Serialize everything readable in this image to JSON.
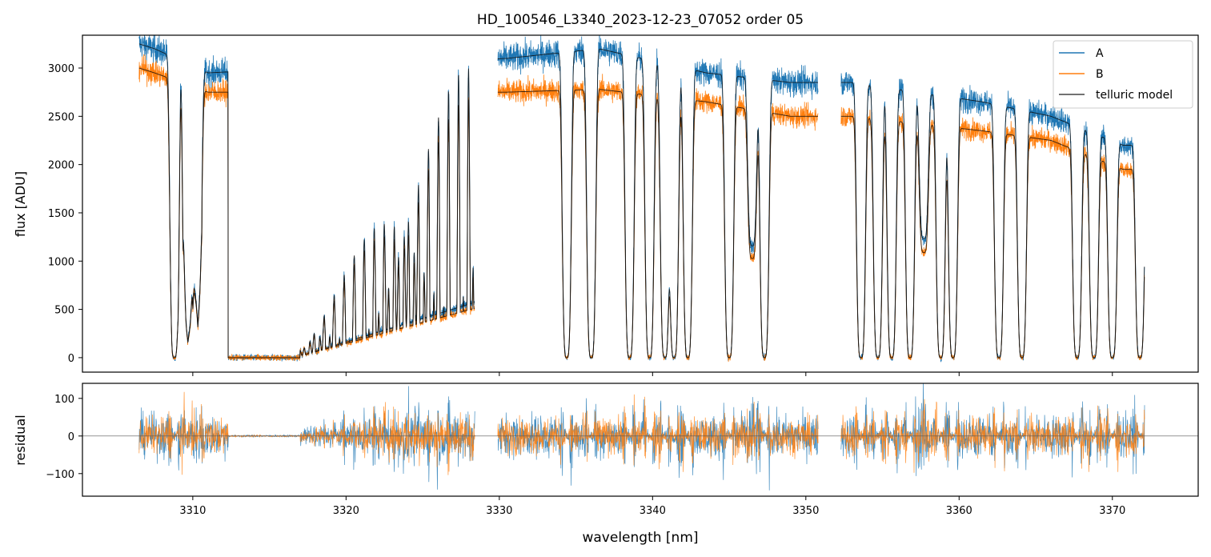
{
  "title": "HD_100546_L3340_2023-12-23_07052  order 05",
  "colors": {
    "A": "#1f77b4",
    "B": "#ff7f0e",
    "model": "#444444"
  },
  "chart_data": [
    {
      "type": "line",
      "panel": "spectrum",
      "ylabel": "flux [ADU]",
      "xlim": [
        3302.8,
        3375.6
      ],
      "ylim": [
        -150,
        3340
      ],
      "yticks": [
        0,
        500,
        1000,
        1500,
        2000,
        2500,
        3000
      ],
      "legend": {
        "placement": "top-right",
        "entries": [
          "A",
          "B",
          "telluric model"
        ]
      },
      "segments": [
        [
          3306.5,
          3328.4
        ],
        [
          3329.9,
          3350.8
        ],
        [
          3352.3,
          3372.1
        ]
      ],
      "series": [
        {
          "name": "A",
          "continuum_peaks": [
            [
              3306.5,
              3250
            ],
            [
              3307.5,
              3200
            ],
            [
              3311.0,
              2950
            ],
            [
              3330.5,
              3100
            ],
            [
              3336.5,
              3200
            ],
            [
              3343.5,
              2950
            ],
            [
              3349.0,
              2850
            ],
            [
              3353.0,
              2850
            ],
            [
              3361.5,
              2650
            ],
            [
              3366.0,
              2500
            ],
            [
              3370.7,
              2200
            ]
          ]
        },
        {
          "name": "B",
          "continuum_peaks": [
            [
              3306.5,
              3000
            ],
            [
              3307.5,
              2950
            ],
            [
              3311.0,
              2750
            ],
            [
              3330.5,
              2750
            ],
            [
              3336.5,
              2780
            ],
            [
              3343.5,
              2650
            ],
            [
              3349.0,
              2500
            ],
            [
              3353.0,
              2500
            ],
            [
              3361.5,
              2350
            ],
            [
              3366.0,
              2250
            ],
            [
              3370.7,
              1950
            ]
          ]
        },
        {
          "name": "telluric model",
          "absorption_lines": [
            [
              3308.8,
              0.0
            ],
            [
              3309.7,
              0.1
            ],
            [
              3310.3,
              0.2
            ],
            [
              3334.4,
              0.0
            ],
            [
              3336.0,
              0.0
            ],
            [
              3338.5,
              0.0
            ],
            [
              3339.8,
              0.0
            ],
            [
              3340.8,
              0.0
            ],
            [
              3341.4,
              0.0
            ],
            [
              3342.3,
              0.0
            ],
            [
              3345.0,
              0.0
            ],
            [
              3346.5,
              0.4
            ],
            [
              3347.3,
              0.0
            ],
            [
              3353.6,
              0.0
            ],
            [
              3354.7,
              0.0
            ],
            [
              3355.6,
              0.0
            ],
            [
              3356.8,
              0.0
            ],
            [
              3357.7,
              0.45
            ],
            [
              3358.8,
              0.0
            ],
            [
              3359.6,
              0.0
            ],
            [
              3362.6,
              0.0
            ],
            [
              3364.1,
              0.0
            ],
            [
              3367.7,
              0.0
            ],
            [
              3368.8,
              0.0
            ],
            [
              3370.0,
              0.0
            ],
            [
              3371.8,
              0.0
            ]
          ]
        }
      ]
    },
    {
      "type": "line",
      "panel": "residual",
      "xlabel": "wavelength [nm]",
      "ylabel": "residual",
      "xlim": [
        3302.8,
        3375.6
      ],
      "ylim": [
        -160,
        140
      ],
      "yticks": [
        -100,
        0,
        100
      ],
      "xticks": [
        3310,
        3320,
        3330,
        3340,
        3350,
        3360,
        3370
      ],
      "reference_line": 0,
      "series": [
        {
          "name": "A",
          "typical_scatter": 60
        },
        {
          "name": "B",
          "typical_scatter": 50
        }
      ]
    }
  ]
}
